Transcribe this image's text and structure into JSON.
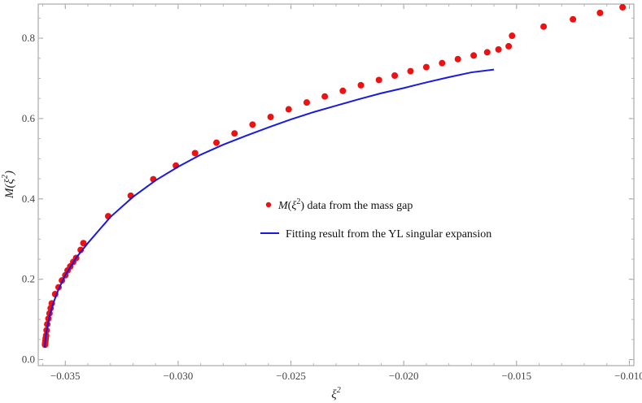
{
  "chart_data": {
    "type": "scatter",
    "xlabel": "ξ²",
    "ylabel": "M(ξ²)",
    "xlim": [
      -0.0362,
      -0.0098
    ],
    "ylim": [
      -0.015,
      0.885
    ],
    "x_ticks": [
      -0.035,
      -0.03,
      -0.025,
      -0.02,
      -0.015,
      -0.01
    ],
    "x_tick_labels": [
      "−0.035",
      "−0.030",
      "−0.025",
      "−0.020",
      "−0.015",
      "−0.010"
    ],
    "y_ticks": [
      0.0,
      0.2,
      0.4,
      0.6,
      0.8
    ],
    "y_tick_labels": [
      "0.0",
      "0.2",
      "0.4",
      "0.6",
      "0.8"
    ],
    "grid": false,
    "frame": "box",
    "legend": {
      "placement": "center-right",
      "entries": [
        {
          "marker": "dot",
          "text_italic": "M(ξ²)",
          "text": " data from the mass gap"
        },
        {
          "marker": "line",
          "text_italic": "",
          "text": "Fitting result from the YL singular expansion"
        }
      ]
    },
    "series": [
      {
        "kind": "points",
        "color": "#ee1111",
        "points": [
          [
            -0.0359,
            0.037
          ],
          [
            -0.03589,
            0.042
          ],
          [
            -0.03588,
            0.047
          ],
          [
            -0.03587,
            0.053
          ],
          [
            -0.03585,
            0.06
          ],
          [
            -0.03583,
            0.073
          ],
          [
            -0.0358,
            0.088
          ],
          [
            -0.03575,
            0.102
          ],
          [
            -0.0357,
            0.115
          ],
          [
            -0.03565,
            0.128
          ],
          [
            -0.0356,
            0.14
          ],
          [
            -0.03545,
            0.163
          ],
          [
            -0.0353,
            0.18
          ],
          [
            -0.03515,
            0.197
          ],
          [
            -0.035,
            0.21
          ],
          [
            -0.0349,
            0.222
          ],
          [
            -0.03478,
            0.232
          ],
          [
            -0.03465,
            0.243
          ],
          [
            -0.03452,
            0.253
          ],
          [
            -0.03432,
            0.273
          ],
          [
            -0.0342,
            0.29
          ],
          [
            -0.0331,
            0.357
          ],
          [
            -0.0321,
            0.408
          ],
          [
            -0.0311,
            0.449
          ],
          [
            -0.0301,
            0.483
          ],
          [
            -0.02925,
            0.514
          ],
          [
            -0.0283,
            0.54
          ],
          [
            -0.0275,
            0.563
          ],
          [
            -0.0267,
            0.585
          ],
          [
            -0.0259,
            0.604
          ],
          [
            -0.0251,
            0.623
          ],
          [
            -0.0243,
            0.64
          ],
          [
            -0.0235,
            0.655
          ],
          [
            -0.0227,
            0.669
          ],
          [
            -0.0219,
            0.683
          ],
          [
            -0.0211,
            0.696
          ],
          [
            -0.0204,
            0.707
          ],
          [
            -0.0197,
            0.718
          ],
          [
            -0.019,
            0.728
          ],
          [
            -0.0183,
            0.738
          ],
          [
            -0.0176,
            0.748
          ],
          [
            -0.0169,
            0.757
          ],
          [
            -0.0163,
            0.765
          ],
          [
            -0.0158,
            0.772
          ],
          [
            -0.01535,
            0.78
          ],
          [
            -0.0152,
            0.806
          ],
          [
            -0.0138,
            0.829
          ],
          [
            -0.0125,
            0.847
          ],
          [
            -0.0113,
            0.863
          ],
          [
            -0.0103,
            0.877
          ]
        ]
      },
      {
        "kind": "line",
        "color": "#1a1adf",
        "points": [
          [
            -0.03591,
            0.03
          ],
          [
            -0.03589,
            0.045
          ],
          [
            -0.03586,
            0.06
          ],
          [
            -0.0358,
            0.08
          ],
          [
            -0.0357,
            0.108
          ],
          [
            -0.03555,
            0.138
          ],
          [
            -0.0353,
            0.175
          ],
          [
            -0.035,
            0.21
          ],
          [
            -0.0345,
            0.255
          ],
          [
            -0.034,
            0.29
          ],
          [
            -0.033,
            0.355
          ],
          [
            -0.032,
            0.405
          ],
          [
            -0.031,
            0.446
          ],
          [
            -0.03,
            0.48
          ],
          [
            -0.029,
            0.51
          ],
          [
            -0.028,
            0.535
          ],
          [
            -0.027,
            0.557
          ],
          [
            -0.026,
            0.578
          ],
          [
            -0.025,
            0.598
          ],
          [
            -0.024,
            0.616
          ],
          [
            -0.023,
            0.632
          ],
          [
            -0.022,
            0.648
          ],
          [
            -0.021,
            0.663
          ],
          [
            -0.02,
            0.676
          ],
          [
            -0.019,
            0.69
          ],
          [
            -0.018,
            0.703
          ],
          [
            -0.017,
            0.715
          ],
          [
            -0.016,
            0.722
          ]
        ]
      }
    ]
  }
}
